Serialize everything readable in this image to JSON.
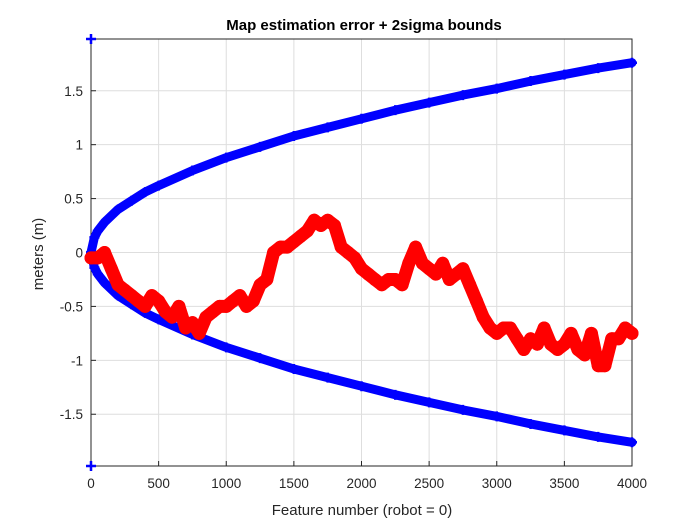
{
  "chart_data": {
    "type": "line",
    "title": "Map estimation error + 2sigma bounds",
    "xlabel": "Feature number (robot = 0)",
    "ylabel": "meters (m)",
    "xlim": [
      0,
      4000
    ],
    "ylim": [
      -1.98,
      1.98
    ],
    "xticks": [
      "0",
      "500",
      "1000",
      "1500",
      "2000",
      "2500",
      "3000",
      "3500",
      "4000"
    ],
    "yticks": [
      "-1.5",
      "-1",
      "-0.5",
      "0",
      "0.5",
      "1",
      "1.5"
    ],
    "xtick_values": [
      0,
      500,
      1000,
      1500,
      2000,
      2500,
      3000,
      3500,
      4000
    ],
    "ytick_values": [
      -1.5,
      -1,
      -0.5,
      0,
      0.5,
      1,
      1.5
    ],
    "grid": true,
    "colors": {
      "bounds": "#0000ff",
      "error": "#ff0000"
    },
    "series": [
      {
        "role": "upper-bound",
        "color": "#0000ff",
        "marker": "plus",
        "x": [
          0,
          25,
          50,
          100,
          200,
          300,
          400,
          500,
          750,
          1000,
          1250,
          1500,
          1750,
          2000,
          2250,
          2500,
          2750,
          3000,
          3250,
          3500,
          3750,
          4000
        ],
        "y": [
          0,
          0.14,
          0.2,
          0.28,
          0.4,
          0.48,
          0.56,
          0.62,
          0.76,
          0.88,
          0.98,
          1.08,
          1.16,
          1.24,
          1.32,
          1.39,
          1.46,
          1.52,
          1.59,
          1.65,
          1.71,
          1.76
        ]
      },
      {
        "role": "lower-bound",
        "color": "#0000ff",
        "marker": "plus",
        "x": [
          0,
          25,
          50,
          100,
          200,
          300,
          400,
          500,
          750,
          1000,
          1250,
          1500,
          1750,
          2000,
          2250,
          2500,
          2750,
          3000,
          3250,
          3500,
          3750,
          4000
        ],
        "y": [
          0,
          -0.14,
          -0.2,
          -0.28,
          -0.4,
          -0.48,
          -0.56,
          -0.62,
          -0.76,
          -0.88,
          -0.98,
          -1.08,
          -1.16,
          -1.24,
          -1.32,
          -1.39,
          -1.46,
          -1.52,
          -1.59,
          -1.65,
          -1.71,
          -1.76
        ]
      },
      {
        "role": "error",
        "color": "#ff0000",
        "marker": "circle",
        "x": [
          0,
          50,
          100,
          150,
          200,
          250,
          300,
          350,
          400,
          450,
          500,
          550,
          600,
          650,
          700,
          750,
          800,
          850,
          900,
          950,
          1000,
          1050,
          1100,
          1150,
          1200,
          1250,
          1300,
          1350,
          1400,
          1450,
          1500,
          1550,
          1600,
          1650,
          1700,
          1750,
          1800,
          1850,
          1900,
          1950,
          2000,
          2050,
          2100,
          2150,
          2200,
          2250,
          2300,
          2350,
          2400,
          2450,
          2500,
          2550,
          2600,
          2650,
          2700,
          2750,
          2800,
          2850,
          2900,
          2950,
          3000,
          3050,
          3100,
          3150,
          3200,
          3250,
          3300,
          3350,
          3400,
          3450,
          3500,
          3550,
          3600,
          3650,
          3700,
          3750,
          3800,
          3850,
          3900,
          3950,
          4000
        ],
        "y": [
          -0.05,
          -0.05,
          0,
          -0.15,
          -0.3,
          -0.35,
          -0.4,
          -0.45,
          -0.5,
          -0.4,
          -0.45,
          -0.55,
          -0.6,
          -0.5,
          -0.7,
          -0.65,
          -0.75,
          -0.6,
          -0.55,
          -0.5,
          -0.5,
          -0.45,
          -0.4,
          -0.5,
          -0.45,
          -0.3,
          -0.25,
          0,
          0.05,
          0.05,
          0.1,
          0.15,
          0.2,
          0.3,
          0.25,
          0.3,
          0.25,
          0.05,
          0,
          -0.05,
          -0.15,
          -0.2,
          -0.25,
          -0.3,
          -0.25,
          -0.25,
          -0.3,
          -0.1,
          0.05,
          -0.1,
          -0.15,
          -0.2,
          -0.1,
          -0.25,
          -0.2,
          -0.15,
          -0.3,
          -0.45,
          -0.6,
          -0.7,
          -0.75,
          -0.7,
          -0.7,
          -0.8,
          -0.9,
          -0.8,
          -0.85,
          -0.7,
          -0.85,
          -0.9,
          -0.85,
          -0.75,
          -0.9,
          -0.95,
          -0.75,
          -1.05,
          -1.05,
          -0.8,
          -0.8,
          -0.7,
          -0.75
        ]
      }
    ]
  }
}
